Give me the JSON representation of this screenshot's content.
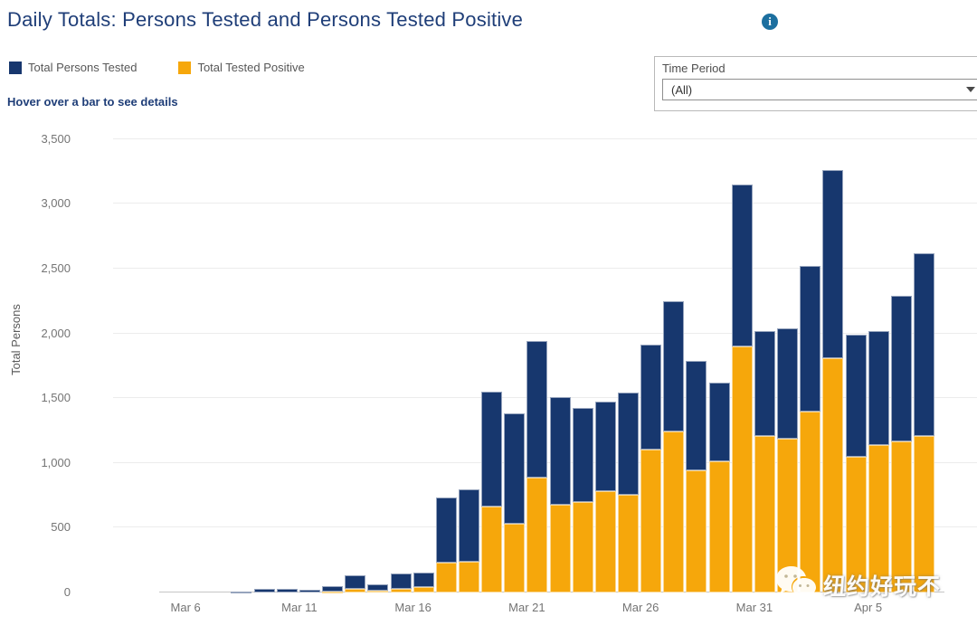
{
  "header": {
    "title": "Daily Totals: Persons Tested and Persons Tested Positive",
    "info_icon_glyph": "i"
  },
  "legend": [
    {
      "label": "Total Persons Tested",
      "color": "#17376E"
    },
    {
      "label": "Total Tested Positive",
      "color": "#F6A70B"
    }
  ],
  "hover_hint": "Hover over a bar to see details",
  "time_period": {
    "label": "Time Period",
    "selected": "(All)"
  },
  "watermark": {
    "text": "纽约好玩不"
  },
  "colors": {
    "title_navy": "#1F3E78",
    "bar_navy": "#17376E",
    "bar_gold": "#F6A70B",
    "info_teal": "#1C6F9F",
    "axis_text": "#747474",
    "gridline": "#ececec"
  },
  "chart_data": {
    "type": "bar",
    "stacked": true,
    "ylabel": "Total Persons",
    "xlabel": "",
    "ylim": [
      0,
      3500
    ],
    "y_ticks": [
      0,
      500,
      1000,
      1500,
      2000,
      2500,
      3000,
      3500
    ],
    "y_tick_labels": [
      "0",
      "500",
      "1,000",
      "1,500",
      "2,000",
      "2,500",
      "3,000",
      "3,500"
    ],
    "grid": "horizontal",
    "legend_position": "top-left",
    "categories": [
      "Mar 5",
      "Mar 6",
      "Mar 7",
      "Mar 8",
      "Mar 9",
      "Mar 10",
      "Mar 11",
      "Mar 12",
      "Mar 13",
      "Mar 14",
      "Mar 15",
      "Mar 16",
      "Mar 17",
      "Mar 18",
      "Mar 19",
      "Mar 20",
      "Mar 21",
      "Mar 22",
      "Mar 23",
      "Mar 24",
      "Mar 25",
      "Mar 26",
      "Mar 27",
      "Mar 28",
      "Mar 29",
      "Mar 30",
      "Mar 31",
      "Apr 1",
      "Apr 2",
      "Apr 3",
      "Apr 4",
      "Apr 5",
      "Apr 6",
      "Apr 7"
    ],
    "x_axis_ticks": [
      {
        "index": 1,
        "label": "Mar 6"
      },
      {
        "index": 6,
        "label": "Mar 11"
      },
      {
        "index": 11,
        "label": "Mar 16"
      },
      {
        "index": 16,
        "label": "Mar 21"
      },
      {
        "index": 21,
        "label": "Mar 26"
      },
      {
        "index": 26,
        "label": "Mar 31"
      },
      {
        "index": 31,
        "label": "Apr 5"
      }
    ],
    "series": [
      {
        "name": "Total Persons Tested",
        "role": "total-bar-height",
        "color": "#17376E",
        "values": [
          0,
          0,
          0,
          5,
          30,
          28,
          22,
          50,
          130,
          65,
          150,
          155,
          735,
          795,
          1550,
          1380,
          1940,
          1505,
          1425,
          1470,
          1545,
          1910,
          2250,
          1790,
          1620,
          3150,
          2020,
          2040,
          2520,
          3260,
          1990,
          2015,
          2290,
          2620
        ]
      },
      {
        "name": "Total Tested Positive",
        "role": "bottom-stack",
        "color": "#F6A70B",
        "values": [
          0,
          0,
          0,
          0,
          0,
          0,
          0,
          10,
          25,
          15,
          30,
          45,
          230,
          240,
          665,
          530,
          890,
          680,
          695,
          780,
          755,
          1100,
          1245,
          945,
          1010,
          1900,
          1205,
          1190,
          1400,
          1810,
          1045,
          1135,
          1165,
          1205
        ]
      }
    ]
  }
}
